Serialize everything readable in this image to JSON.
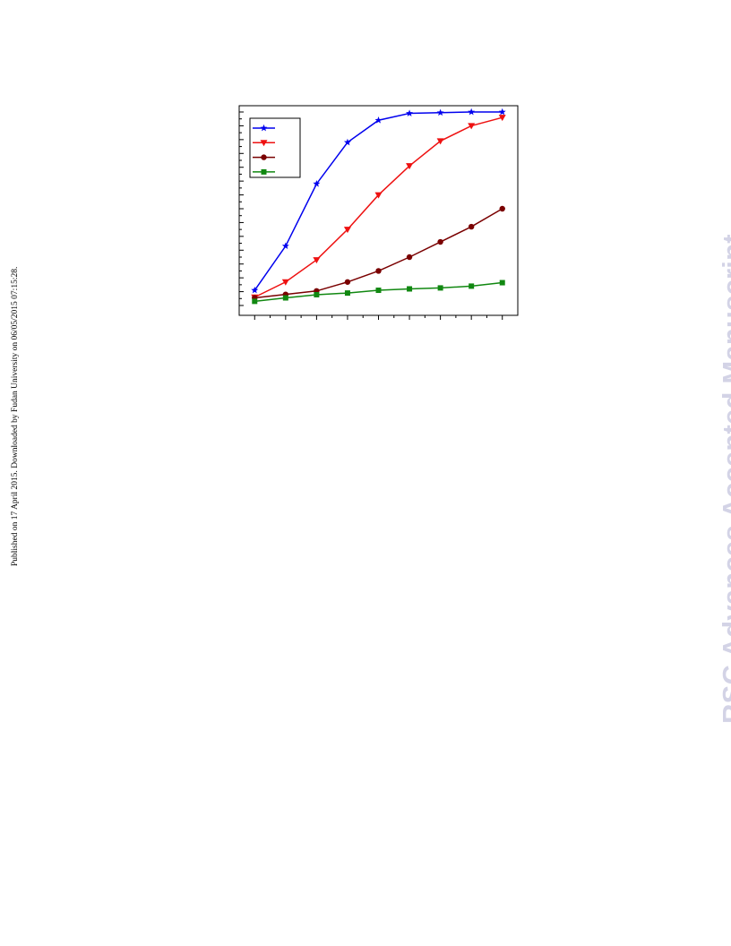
{
  "side_note": "Published on 17 April 2015. Downloaded by Fudan University on 06/05/2015 07:15:28.",
  "watermark": {
    "text": "RSC Advances Accepted Manuscript",
    "color": "#d3d3e6"
  },
  "chart_data": {
    "type": "line",
    "title": "",
    "xlabel": "",
    "ylabel": "",
    "x": [
      1,
      2,
      3,
      4,
      5,
      6,
      7,
      8,
      9
    ],
    "xlim": [
      0.5,
      9.5
    ],
    "ylim": [
      0,
      14
    ],
    "grid": false,
    "legend_position": "top-left",
    "series": [
      {
        "color": "#0000ee",
        "marker": "star",
        "values": [
          1.1,
          4.3,
          8.8,
          11.8,
          13.4,
          13.9,
          13.95,
          14.0,
          14.0
        ]
      },
      {
        "color": "#ee1111",
        "marker": "triangle",
        "values": [
          0.6,
          1.7,
          3.3,
          5.5,
          8.0,
          10.1,
          11.9,
          13.0,
          13.6
        ]
      },
      {
        "color": "#7a0000",
        "marker": "circle",
        "values": [
          0.55,
          0.8,
          1.05,
          1.7,
          2.5,
          3.5,
          4.6,
          5.7,
          7.0
        ]
      },
      {
        "color": "#118811",
        "marker": "square",
        "values": [
          0.3,
          0.55,
          0.78,
          0.9,
          1.1,
          1.2,
          1.27,
          1.4,
          1.65
        ]
      }
    ]
  }
}
